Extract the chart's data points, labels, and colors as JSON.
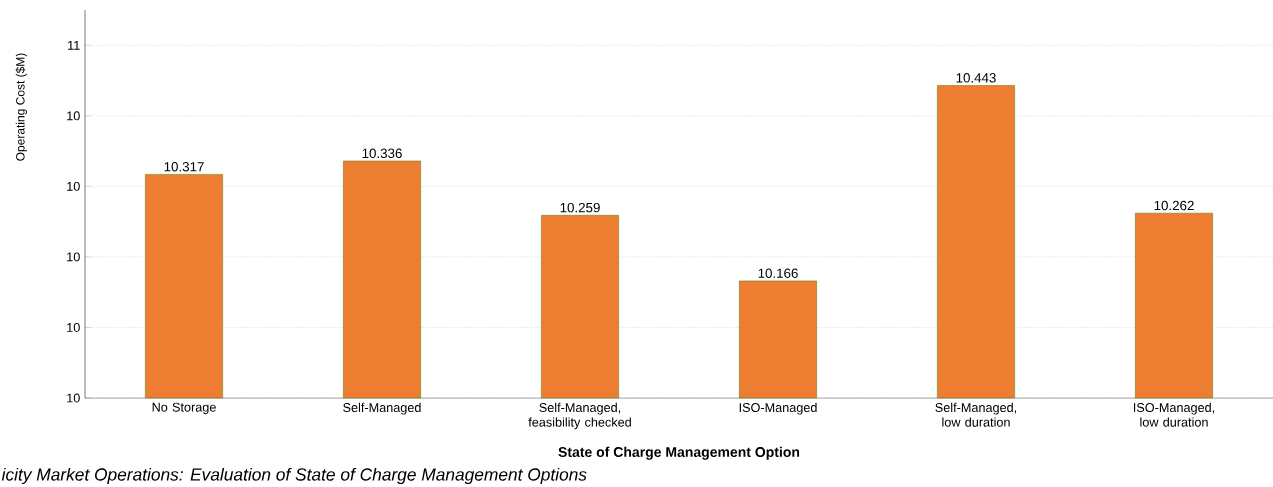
{
  "chart_data": {
    "type": "bar",
    "categories": [
      "No Storage",
      "Self-Managed",
      "Self-Managed, feasibility checked",
      "ISO-Managed",
      "Self-Managed, low duration",
      "ISO-Managed, low duration"
    ],
    "values": [
      10.317,
      10.336,
      10.259,
      10.166,
      10.443,
      10.262
    ],
    "color": "#ed7d31",
    "xlabel": "State of Charge Management Option",
    "ylabel": "Operating Cost ($M)",
    "ylim": [
      10.0,
      10.55
    ],
    "yticks": [
      {
        "value": 10.0,
        "label": "10"
      },
      {
        "value": 10.1,
        "label": "10"
      },
      {
        "value": 10.2,
        "label": "10"
      },
      {
        "value": 10.3,
        "label": "10"
      },
      {
        "value": 10.4,
        "label": "10"
      },
      {
        "value": 10.5,
        "label": "11"
      }
    ],
    "grid": "y",
    "data_labels": true,
    "annotations": [
      "icity Market Operations: Evaluation of State of Charge Management Options"
    ]
  }
}
